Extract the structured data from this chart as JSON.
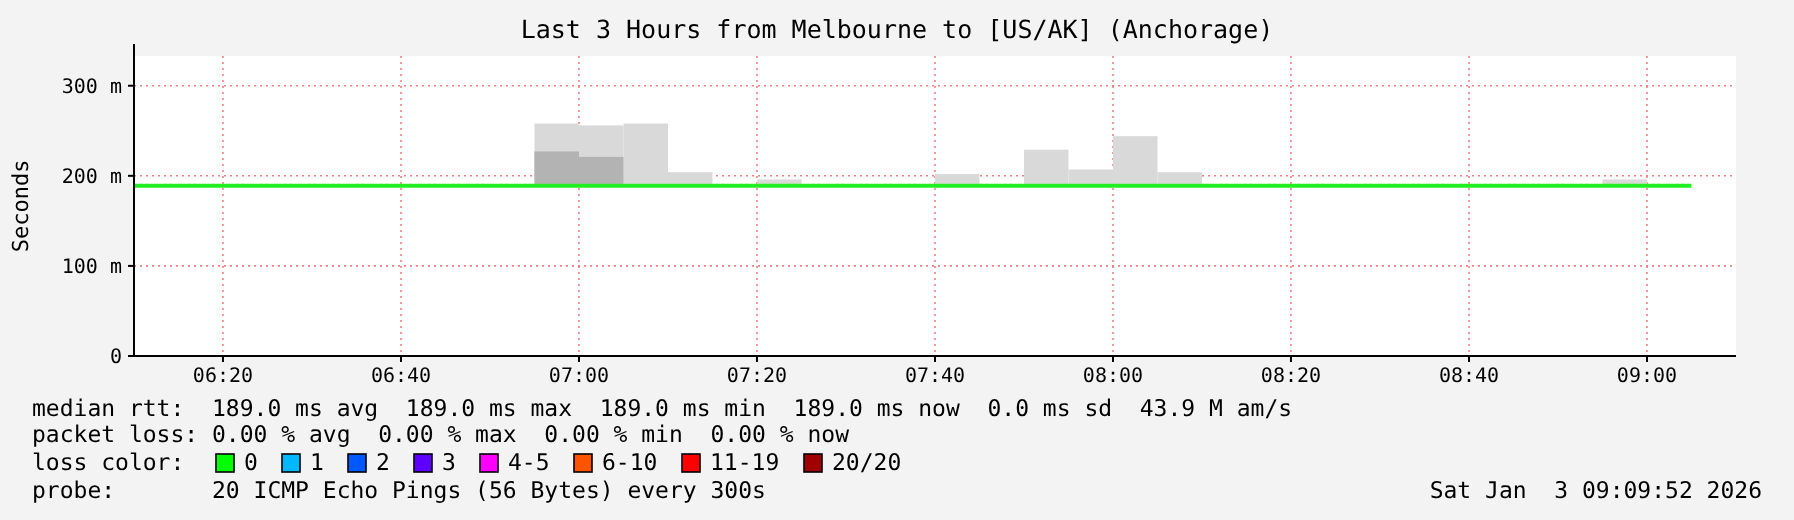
{
  "chart_data": {
    "type": "line",
    "title": "Last 3 Hours from Melbourne to [US/AK] (Anchorage)",
    "ylabel": "Seconds",
    "xlim": [
      6.1667,
      9.1667
    ],
    "ylim": [
      0,
      333
    ],
    "xticks": [
      {
        "value": 6.3333,
        "label": "06:20"
      },
      {
        "value": 6.6667,
        "label": "06:40"
      },
      {
        "value": 7,
        "label": "07:00"
      },
      {
        "value": 7.3333,
        "label": "07:20"
      },
      {
        "value": 7.6667,
        "label": "07:40"
      },
      {
        "value": 8,
        "label": "08:00"
      },
      {
        "value": 8.3333,
        "label": "08:20"
      },
      {
        "value": 8.6667,
        "label": "08:40"
      },
      {
        "value": 9,
        "label": "09:00"
      }
    ],
    "yticks": [
      0,
      {
        "value": 100,
        "label": "100 m"
      },
      {
        "value": 200,
        "label": "200 m"
      },
      {
        "value": 300,
        "label": "300 m"
      }
    ],
    "grid": true,
    "series": [
      {
        "type": "bar",
        "color": "#d9d9d9",
        "x": [
          6.9583,
          7.0417,
          7.125,
          7.2083,
          7.375,
          7.7083,
          7.875,
          7.9583,
          8.0417,
          8.125,
          8.9583
        ],
        "base": [
          189,
          189,
          189,
          189,
          189,
          189,
          189,
          189,
          189,
          189,
          189
        ],
        "values": [
          69,
          67,
          69,
          15,
          7,
          13,
          40,
          18,
          55,
          15,
          7
        ]
      },
      {
        "type": "bar",
        "color": "#b3b3b3",
        "x": [
          6.9583,
          7.0417
        ],
        "base": [
          189,
          189
        ],
        "values": [
          38,
          32
        ]
      },
      {
        "color": "#22ee22",
        "x": [
          6.1667,
          9.0833
        ],
        "values": [
          189,
          189
        ]
      }
    ],
    "annotations": [
      "median rtt:  189.0 ms avg  189.0 ms max  189.0 ms min  189.0 ms now  0.0 ms sd  43.9 M am/s",
      "packet loss: 0.00 % avg  0.00 % max  0.00 % min  0.00 % now",
      "loss color:",
      "0",
      "1",
      "2",
      "3",
      "4-5",
      "6-10",
      "11-19",
      "20/20",
      "probe:       20 ICMP Echo Pings (56 Bytes) every 300s",
      "Sat Jan  3 09:09:52 2026"
    ]
  }
}
